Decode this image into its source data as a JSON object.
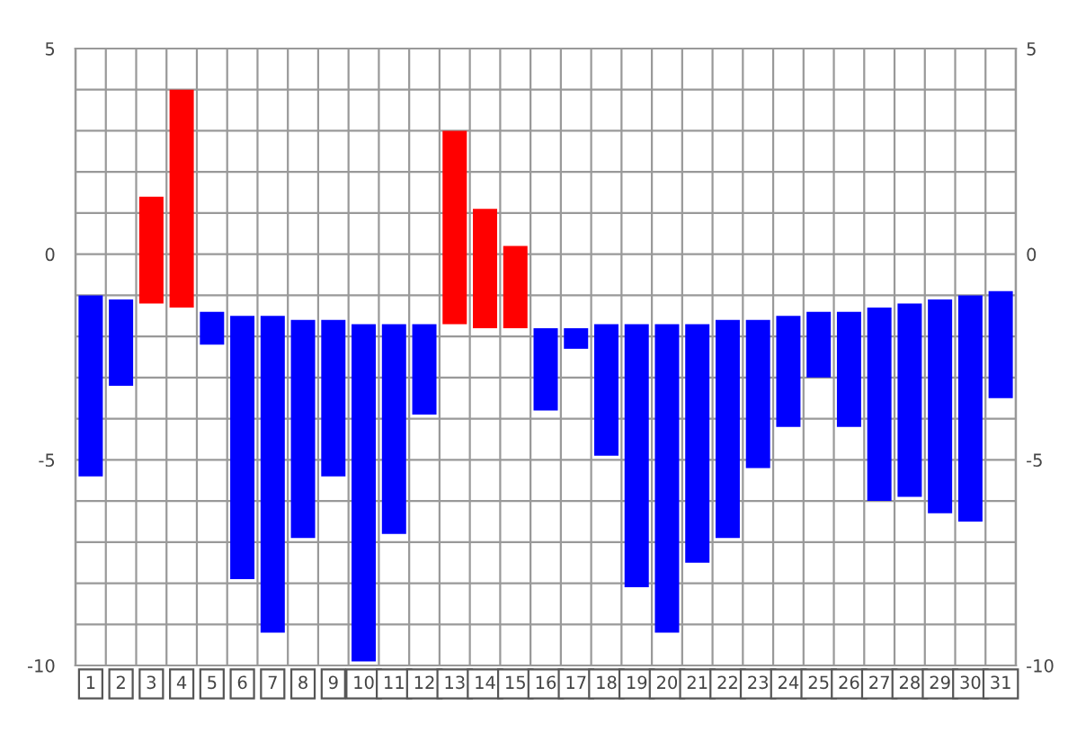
{
  "chart_data": {
    "type": "bar",
    "categories": [
      "1",
      "2",
      "3",
      "4",
      "5",
      "6",
      "7",
      "8",
      "9",
      "10",
      "11",
      "12",
      "13",
      "14",
      "15",
      "16",
      "17",
      "18",
      "19",
      "20",
      "21",
      "22",
      "23",
      "24",
      "25",
      "26",
      "27",
      "28",
      "29",
      "30",
      "31"
    ],
    "base": [
      -1.0,
      -1.1,
      -1.2,
      -1.3,
      -1.4,
      -1.5,
      -1.5,
      -1.6,
      -1.6,
      -1.7,
      -1.7,
      -1.7,
      -1.7,
      -1.8,
      -1.8,
      -1.8,
      -1.8,
      -1.7,
      -1.7,
      -1.7,
      -1.7,
      -1.6,
      -1.6,
      -1.5,
      -1.4,
      -1.4,
      -1.3,
      -1.2,
      -1.1,
      -1.0,
      -0.9
    ],
    "values": [
      -4.4,
      -2.1,
      2.6,
      5.3,
      -0.8,
      -6.4,
      -7.7,
      -5.3,
      -3.8,
      -8.2,
      -5.1,
      -2.2,
      4.7,
      2.9,
      2.0,
      -2.0,
      -0.5,
      -3.2,
      -6.4,
      -7.5,
      -5.8,
      -5.3,
      -3.6,
      -2.7,
      -1.6,
      -2.8,
      -4.7,
      -4.7,
      -5.2,
      -5.5,
      -2.6
    ],
    "colors": [
      "#0000ff",
      "#0000ff",
      "#ff0000",
      "#ff0000",
      "#0000ff",
      "#0000ff",
      "#0000ff",
      "#0000ff",
      "#0000ff",
      "#0000ff",
      "#0000ff",
      "#0000ff",
      "#ff0000",
      "#ff0000",
      "#ff0000",
      "#0000ff",
      "#0000ff",
      "#0000ff",
      "#0000ff",
      "#0000ff",
      "#0000ff",
      "#0000ff",
      "#0000ff",
      "#0000ff",
      "#0000ff",
      "#0000ff",
      "#0000ff",
      "#0000ff",
      "#0000ff",
      "#0000ff",
      "#0000ff"
    ],
    "ylim": [
      -10,
      5
    ],
    "yticks": [
      -10,
      {
        "value": -9,
        "label": null
      },
      {
        "value": -8,
        "label": null
      },
      {
        "value": -7,
        "label": null
      },
      {
        "value": -6,
        "label": null
      },
      -5,
      {
        "value": -4,
        "label": null
      },
      {
        "value": -3,
        "label": null
      },
      {
        "value": -2,
        "label": null
      },
      {
        "value": -1,
        "label": null
      },
      0,
      {
        "value": 1,
        "label": null
      },
      {
        "value": 2,
        "label": null
      },
      {
        "value": 3,
        "label": null
      },
      {
        "value": 4,
        "label": null
      },
      5
    ],
    "y2lim": [
      -10,
      5
    ],
    "y2ticks": [
      -10,
      -5,
      0,
      5
    ],
    "grid": true
  }
}
